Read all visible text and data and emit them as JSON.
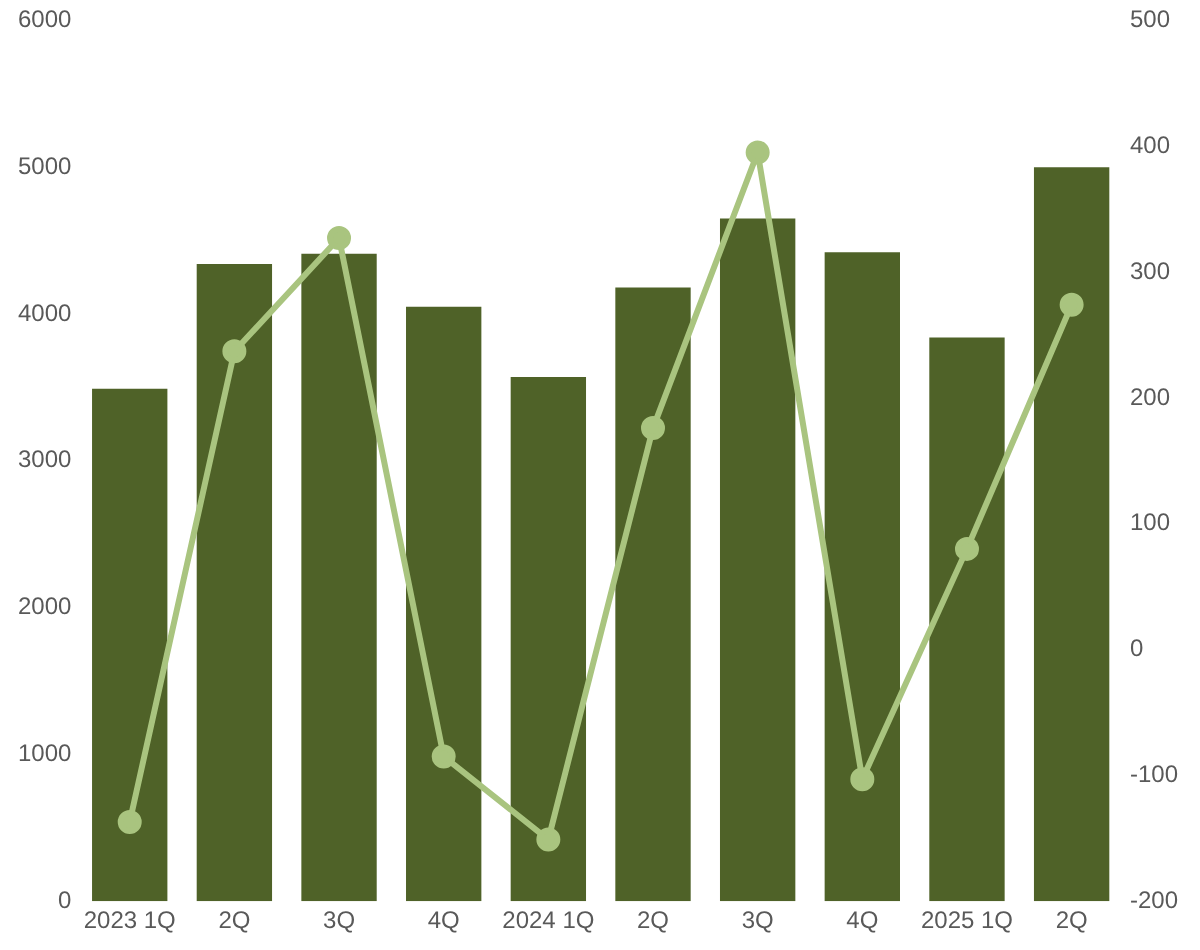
{
  "chart_data": {
    "type": "bar",
    "categories": [
      "2023 1Q",
      "2Q",
      "3Q",
      "4Q",
      "2024 1Q",
      "2Q",
      "3Q",
      "4Q",
      "2025 1Q",
      "2Q"
    ],
    "series": [
      {
        "color": "#4f6228",
        "values": [
          3490,
          4340,
          4410,
          4050,
          3570,
          4180,
          4650,
          4420,
          3840,
          5000
        ]
      },
      {
        "type": "line",
        "axis": "y2",
        "color": "#a9c47f",
        "values": [
          -137,
          237,
          327,
          -85,
          -151,
          176,
          395,
          -103,
          80,
          274
        ]
      }
    ],
    "ylim": [
      0,
      6000
    ],
    "yticks": [
      0,
      1000,
      2000,
      3000,
      4000,
      5000,
      6000
    ],
    "y2lim": [
      -200,
      500
    ],
    "y2ticks": [
      -200,
      -100,
      0,
      100,
      200,
      300,
      400,
      500
    ],
    "grid": false,
    "legend": false,
    "marker": "circle",
    "line_style": "solid"
  }
}
